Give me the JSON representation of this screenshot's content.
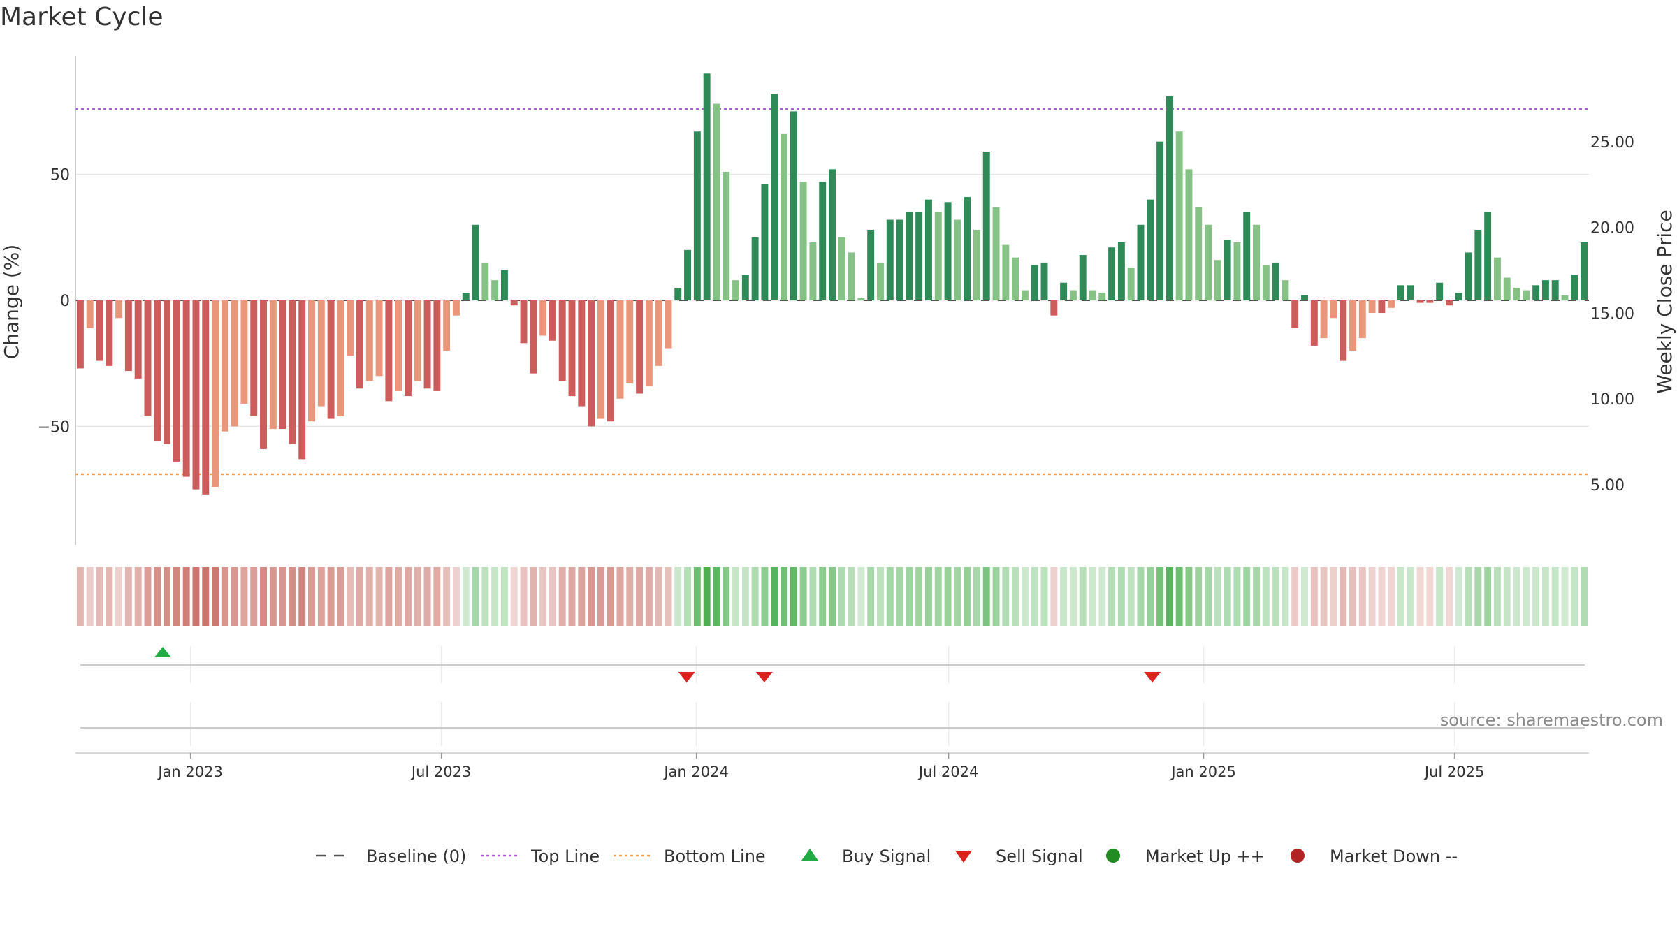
{
  "title": "Market Cycle",
  "source": "source: sharemaestro.com",
  "colors": {
    "up_dark": "#2e8b57",
    "up_light": "#86c286",
    "down_dark": "#cd5c5c",
    "down_light": "#e9967a",
    "top_line": "#b05cd6",
    "bottom_line": "#f0a050",
    "baseline": "#555555",
    "buy": "#22aa44",
    "sell": "#dd2222",
    "market_up": "#228b22",
    "market_down": "#b22222"
  },
  "chart_data": {
    "type": "bar",
    "title": "Market Cycle",
    "ylabel_left": "Change (%)",
    "ylabel_right": "Weekly Close Price",
    "ylim_left": [
      -97,
      97
    ],
    "left_ticks": [
      {
        "value": 50,
        "label": "50"
      },
      {
        "value": 0,
        "label": "0"
      },
      {
        "value": -50,
        "label": "−50"
      }
    ],
    "right_ticks": [
      "25.00",
      "20.00",
      "15.00",
      "10.00",
      "5.00"
    ],
    "right_ticks_values": [
      25,
      20,
      15,
      10,
      5
    ],
    "right_ylim": [
      1.5,
      30
    ],
    "top_line": 76,
    "bottom_line": -69,
    "grid": true,
    "x_start": "2022-10-10",
    "x_end": "2025-10-06",
    "date_ticks": [
      {
        "date": "2023-01-01",
        "label": "Jan 2023"
      },
      {
        "date": "2023-07-01",
        "label": "Jul 2023"
      },
      {
        "date": "2024-01-01",
        "label": "Jan 2024"
      },
      {
        "date": "2024-07-01",
        "label": "Jul 2024"
      },
      {
        "date": "2025-01-01",
        "label": "Jan 2025"
      },
      {
        "date": "2025-07-01",
        "label": "Jul 2025"
      }
    ],
    "values": [
      -27,
      -11,
      -24,
      -26,
      -7,
      -28,
      -31,
      -46,
      -56,
      -57,
      -64,
      -70,
      -75,
      -77,
      -74,
      -52,
      -50,
      -41,
      -46,
      -59,
      -51,
      -51,
      -57,
      -63,
      -48,
      -42,
      -47,
      -46,
      -22,
      -35,
      -32,
      -30,
      -40,
      -36,
      -38,
      -32,
      -35,
      -36,
      -20,
      -6,
      3,
      30,
      15,
      8,
      12,
      -2,
      -17,
      -29,
      -14,
      -16,
      -32,
      -38,
      -42,
      -50,
      -47,
      -48,
      -39,
      -33,
      -37,
      -34,
      -26,
      -19,
      5,
      20,
      67,
      90,
      78,
      51,
      8,
      10,
      25,
      46,
      82,
      66,
      75,
      47,
      23,
      47,
      52,
      25,
      19,
      1,
      28,
      15,
      32,
      32,
      35,
      35,
      40,
      35,
      39,
      32,
      41,
      28,
      59,
      37,
      22,
      17,
      4,
      14,
      15,
      -6,
      7,
      4,
      18,
      4,
      3,
      21,
      23,
      13,
      30,
      40,
      63,
      81,
      67,
      52,
      37,
      30,
      16,
      24,
      23,
      35,
      30,
      14,
      15,
      8,
      -11,
      2,
      -18,
      -15,
      -7,
      -24,
      -20,
      -15,
      -5,
      -5,
      -3,
      6,
      6,
      -1,
      -1,
      7,
      -2,
      3,
      19,
      28,
      35,
      17,
      9,
      5,
      4,
      6,
      8,
      8,
      2,
      10,
      23
    ],
    "buy_signals": [
      "2022-12-12"
    ],
    "sell_signals": [
      "2023-12-25",
      "2024-02-19",
      "2024-11-25"
    ],
    "legend": [
      {
        "label": "Baseline (0)",
        "icon": "dash-line"
      },
      {
        "label": "Top Line",
        "icon": "dotted-line"
      },
      {
        "label": "Bottom Line",
        "icon": "dotted-line"
      },
      {
        "label": "Buy Signal",
        "icon": "triangle-up"
      },
      {
        "label": "Sell Signal",
        "icon": "triangle-down"
      },
      {
        "label": "Market Up ++",
        "icon": "circle"
      },
      {
        "label": "Market Down --",
        "icon": "circle"
      }
    ]
  }
}
